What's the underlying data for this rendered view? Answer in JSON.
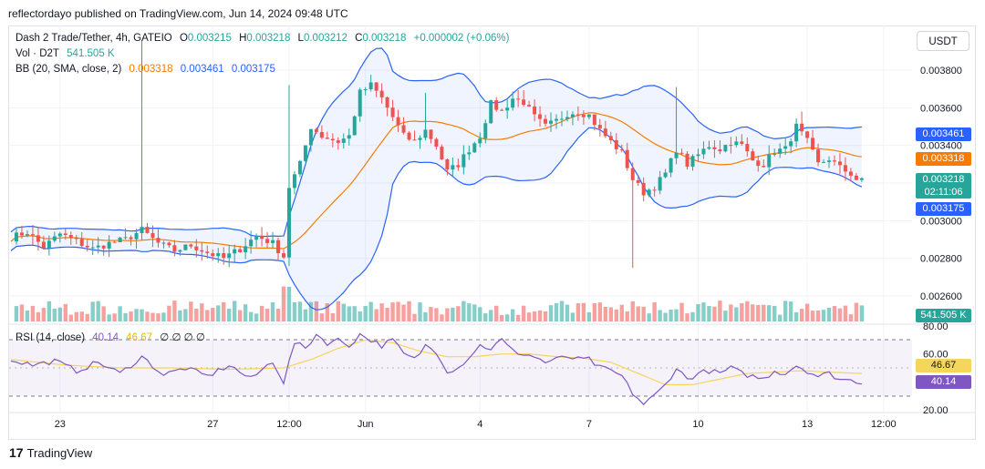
{
  "header": {
    "publisher_line": "reflectordayo published on TradingView.com, Jun 14, 2024 09:48 UTC"
  },
  "legend": {
    "symbol": "Dash 2 Trade/Tether, 4h, GATEIO",
    "o_label": "O",
    "o_value": "0.003215",
    "h_label": "H",
    "h_value": "0.003218",
    "l_label": "L",
    "l_value": "0.003212",
    "c_label": "C",
    "c_value": "0.003218",
    "change": "+0.000002 (+0.06%)",
    "vol_label": "Vol · D2T",
    "vol_value": "541.505 K",
    "bb_label": "BB (20, SMA, close, 2)",
    "bb_basis": "0.003318",
    "bb_upper": "0.003461",
    "bb_lower": "0.003175"
  },
  "rsi_legend": {
    "label": "RSI (14, close)",
    "rsi_value": "40.14",
    "ma_value": "46.67",
    "zeros": "∅  ∅  ∅  ∅"
  },
  "currency_button": "USDT",
  "price_badges": {
    "upper": "0.003461",
    "basis": "0.003318",
    "last": "0.003218",
    "countdown": "02:11:06",
    "lower": "0.003175",
    "volume": "541.505 K"
  },
  "rsi_badges": {
    "ma": "46.67",
    "rsi": "40.14"
  },
  "footer": {
    "logo_glyph": "17",
    "brand": "TradingView"
  },
  "colors": {
    "up": "#26a69a",
    "down": "#ef5350",
    "bb_band": "#2962ff",
    "bb_basis": "#f57c00",
    "rsi": "#7e57c2",
    "rsi_ma": "#f5d55b"
  },
  "chart_data": {
    "type": "candlestick",
    "y_ticks": [
      "0.003800",
      "0.003600",
      "0.003400",
      "0.003200",
      "0.003000",
      "0.002800",
      "0.002600"
    ],
    "ylim": [
      0.00252,
      0.00392
    ],
    "x_ticks": [
      {
        "i": 9,
        "label": "23"
      },
      {
        "i": 37,
        "label": "27"
      },
      {
        "i": 51,
        "label": "12:00"
      },
      {
        "i": 65,
        "label": "Jun"
      },
      {
        "i": 86,
        "label": "4"
      },
      {
        "i": 106,
        "label": "7"
      },
      {
        "i": 126,
        "label": "10"
      },
      {
        "i": 146,
        "label": "13"
      },
      {
        "i": 160,
        "label": "12:00"
      }
    ],
    "rsi_ticks": [
      "80.00",
      "60.00",
      "20.00"
    ],
    "rsi_levels": [
      70,
      30
    ],
    "ohlc_anchors": [
      [
        0,
        0.00291
      ],
      [
        3,
        0.00294
      ],
      [
        6,
        0.00286
      ],
      [
        9,
        0.00293
      ],
      [
        12,
        0.00289
      ],
      [
        15,
        0.00285
      ],
      [
        18,
        0.00288
      ],
      [
        21,
        0.0029
      ],
      [
        24,
        0.00295
      ],
      [
        27,
        0.00288
      ],
      [
        30,
        0.00284
      ],
      [
        33,
        0.00287
      ],
      [
        36,
        0.00283
      ],
      [
        39,
        0.0028
      ],
      [
        42,
        0.00285
      ],
      [
        45,
        0.00292
      ],
      [
        48,
        0.00288
      ],
      [
        50,
        0.00281
      ],
      [
        51,
        0.00318
      ],
      [
        53,
        0.0033
      ],
      [
        55,
        0.0035
      ],
      [
        57,
        0.00345
      ],
      [
        60,
        0.00342
      ],
      [
        62,
        0.00345
      ],
      [
        64,
        0.00368
      ],
      [
        66,
        0.00372
      ],
      [
        68,
        0.00365
      ],
      [
        70,
        0.00355
      ],
      [
        72,
        0.00345
      ],
      [
        74,
        0.00342
      ],
      [
        76,
        0.00348
      ],
      [
        78,
        0.0034
      ],
      [
        80,
        0.00326
      ],
      [
        82,
        0.0033
      ],
      [
        84,
        0.00338
      ],
      [
        86,
        0.00345
      ],
      [
        88,
        0.00362
      ],
      [
        90,
        0.00358
      ],
      [
        92,
        0.00365
      ],
      [
        94,
        0.00363
      ],
      [
        96,
        0.00355
      ],
      [
        98,
        0.0035
      ],
      [
        100,
        0.00353
      ],
      [
        102,
        0.00357
      ],
      [
        104,
        0.00358
      ],
      [
        106,
        0.00356
      ],
      [
        108,
        0.00348
      ],
      [
        110,
        0.00342
      ],
      [
        112,
        0.00336
      ],
      [
        114,
        0.00322
      ],
      [
        116,
        0.00315
      ],
      [
        118,
        0.00318
      ],
      [
        120,
        0.00325
      ],
      [
        122,
        0.00338
      ],
      [
        124,
        0.0033
      ],
      [
        126,
        0.00335
      ],
      [
        128,
        0.0034
      ],
      [
        130,
        0.00338
      ],
      [
        132,
        0.00342
      ],
      [
        134,
        0.0034
      ],
      [
        136,
        0.00332
      ],
      [
        138,
        0.0033
      ],
      [
        140,
        0.00337
      ],
      [
        142,
        0.00338
      ],
      [
        144,
        0.0035
      ],
      [
        146,
        0.00342
      ],
      [
        148,
        0.0033
      ],
      [
        150,
        0.00333
      ],
      [
        152,
        0.00328
      ],
      [
        154,
        0.00325
      ],
      [
        155,
        0.00322
      ],
      [
        156,
        0.00321
      ]
    ],
    "long_wicks": [
      [
        24,
        0.00396
      ],
      [
        51,
        0.00372
      ],
      [
        76,
        0.00368
      ],
      [
        114,
        0.00275
      ],
      [
        122,
        0.00371
      ],
      [
        145,
        0.00358
      ]
    ],
    "rsi_anchors": [
      [
        0,
        56
      ],
      [
        4,
        52
      ],
      [
        8,
        55
      ],
      [
        12,
        48
      ],
      [
        16,
        54
      ],
      [
        20,
        46
      ],
      [
        24,
        58
      ],
      [
        28,
        45
      ],
      [
        32,
        50
      ],
      [
        36,
        44
      ],
      [
        40,
        52
      ],
      [
        44,
        42
      ],
      [
        48,
        55
      ],
      [
        50,
        40
      ],
      [
        52,
        68
      ],
      [
        54,
        64
      ],
      [
        56,
        74
      ],
      [
        58,
        68
      ],
      [
        60,
        70
      ],
      [
        62,
        66
      ],
      [
        64,
        74
      ],
      [
        66,
        70
      ],
      [
        68,
        66
      ],
      [
        70,
        70
      ],
      [
        72,
        60
      ],
      [
        74,
        56
      ],
      [
        76,
        66
      ],
      [
        78,
        62
      ],
      [
        80,
        48
      ],
      [
        82,
        50
      ],
      [
        84,
        58
      ],
      [
        86,
        66
      ],
      [
        88,
        64
      ],
      [
        90,
        70
      ],
      [
        92,
        62
      ],
      [
        94,
        60
      ],
      [
        96,
        58
      ],
      [
        98,
        54
      ],
      [
        100,
        56
      ],
      [
        102,
        58
      ],
      [
        104,
        56
      ],
      [
        106,
        56
      ],
      [
        108,
        50
      ],
      [
        110,
        48
      ],
      [
        112,
        44
      ],
      [
        114,
        32
      ],
      [
        116,
        24
      ],
      [
        118,
        30
      ],
      [
        120,
        38
      ],
      [
        122,
        50
      ],
      [
        124,
        42
      ],
      [
        126,
        46
      ],
      [
        128,
        48
      ],
      [
        130,
        46
      ],
      [
        132,
        50
      ],
      [
        134,
        46
      ],
      [
        136,
        44
      ],
      [
        138,
        42
      ],
      [
        140,
        48
      ],
      [
        142,
        46
      ],
      [
        144,
        52
      ],
      [
        146,
        48
      ],
      [
        148,
        44
      ],
      [
        150,
        46
      ],
      [
        152,
        42
      ],
      [
        154,
        41
      ],
      [
        156,
        40
      ]
    ],
    "rsi_ma_anchors": [
      [
        0,
        56
      ],
      [
        10,
        52
      ],
      [
        20,
        50
      ],
      [
        30,
        50
      ],
      [
        40,
        49
      ],
      [
        50,
        50
      ],
      [
        55,
        56
      ],
      [
        60,
        64
      ],
      [
        65,
        70
      ],
      [
        70,
        68
      ],
      [
        75,
        62
      ],
      [
        80,
        58
      ],
      [
        85,
        58
      ],
      [
        90,
        60
      ],
      [
        95,
        60
      ],
      [
        100,
        58
      ],
      [
        105,
        57
      ],
      [
        110,
        54
      ],
      [
        115,
        46
      ],
      [
        120,
        38
      ],
      [
        125,
        38
      ],
      [
        130,
        42
      ],
      [
        135,
        46
      ],
      [
        140,
        47
      ],
      [
        145,
        48
      ],
      [
        150,
        47
      ],
      [
        156,
        46
      ]
    ]
  }
}
